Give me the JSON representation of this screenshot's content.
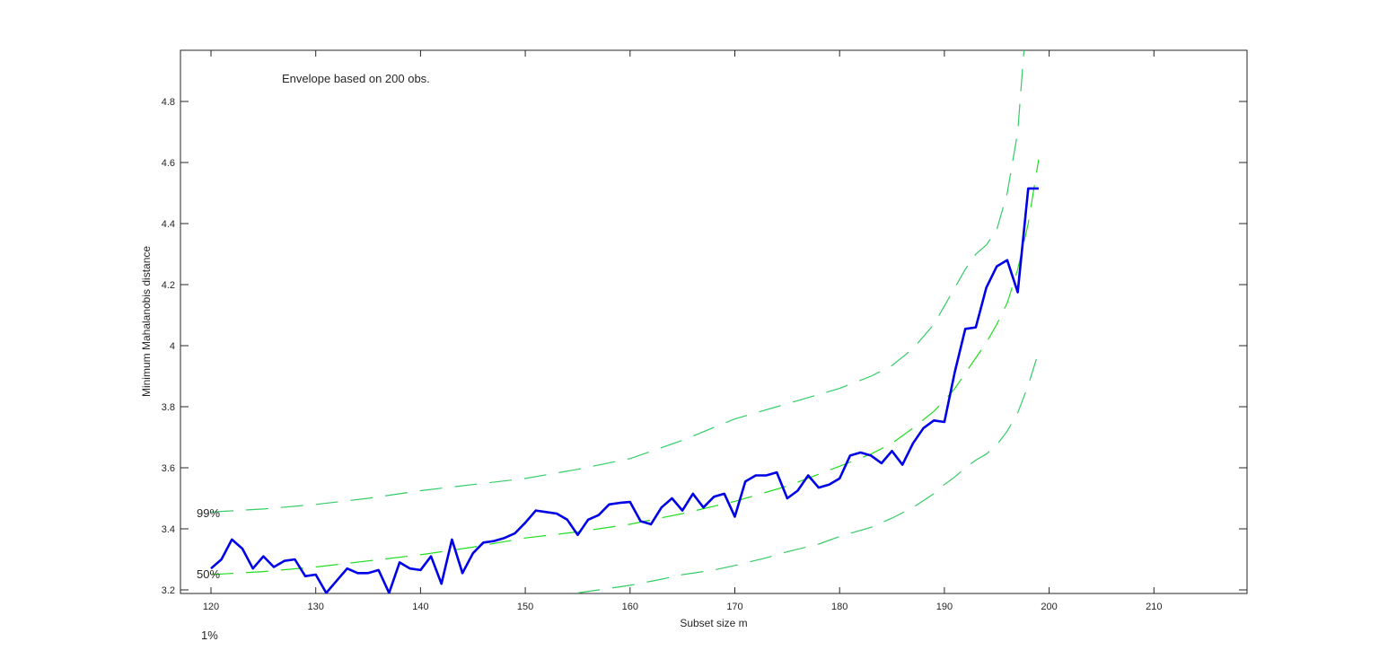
{
  "chart_data": {
    "type": "line",
    "title": "",
    "annotation": "Envelope based on 200 obs.",
    "xlabel": "Subset size m",
    "ylabel": "Minimum Mahalanobis distance",
    "xlim": [
      117,
      219
    ],
    "ylim": [
      3.19,
      4.97
    ],
    "xticks": [
      120,
      130,
      140,
      150,
      160,
      170,
      180,
      190,
      200,
      210
    ],
    "yticks": [
      3.2,
      3.4,
      3.6,
      3.8,
      4,
      4.2,
      4.4,
      4.6,
      4.8
    ],
    "ytick_labels": [
      "3.2",
      "3.4",
      "3.6",
      "3.8",
      "4",
      "4.2",
      "4.4",
      "4.6",
      "4.8"
    ],
    "grid": false,
    "envelope_labels": [
      {
        "text": "99%",
        "x": 120,
        "y": 3.455
      },
      {
        "text": "50%",
        "x": 120,
        "y": 3.25
      },
      {
        "text": "1%",
        "x": 120,
        "y": 3.05
      }
    ],
    "series": [
      {
        "name": "Minimum Mahalanobis distance",
        "color": "#0000e6",
        "style": "solid",
        "x": [
          120,
          121,
          122,
          123,
          124,
          125,
          126,
          127,
          128,
          129,
          130,
          131,
          132,
          133,
          134,
          135,
          136,
          137,
          138,
          139,
          140,
          141,
          142,
          143,
          144,
          145,
          146,
          147,
          148,
          149,
          150,
          151,
          152,
          153,
          154,
          155,
          156,
          157,
          158,
          159,
          160,
          161,
          162,
          163,
          164,
          165,
          166,
          167,
          168,
          169,
          170,
          171,
          172,
          173,
          174,
          175,
          176,
          177,
          178,
          179,
          180,
          181,
          182,
          183,
          184,
          185,
          186,
          187,
          188,
          189,
          190,
          191,
          192,
          193,
          194,
          195,
          196,
          197,
          198,
          199
        ],
        "values": [
          3.27,
          3.3,
          3.365,
          3.335,
          3.27,
          3.31,
          3.275,
          3.295,
          3.3,
          3.245,
          3.25,
          3.19,
          3.23,
          3.27,
          3.255,
          3.255,
          3.265,
          3.19,
          3.29,
          3.27,
          3.265,
          3.31,
          3.22,
          3.365,
          3.255,
          3.32,
          3.355,
          3.36,
          3.37,
          3.385,
          3.42,
          3.46,
          3.455,
          3.45,
          3.43,
          3.38,
          3.43,
          3.445,
          3.48,
          3.485,
          3.488,
          3.425,
          3.415,
          3.47,
          3.5,
          3.46,
          3.515,
          3.47,
          3.505,
          3.515,
          3.44,
          3.555,
          3.575,
          3.575,
          3.585,
          3.5,
          3.525,
          3.575,
          3.535,
          3.545,
          3.565,
          3.64,
          3.65,
          3.64,
          3.615,
          3.655,
          3.61,
          3.68,
          3.73,
          3.755,
          3.75,
          3.915,
          4.055,
          4.06,
          4.19,
          4.26,
          4.28,
          4.175,
          4.515,
          4.515
        ]
      },
      {
        "name": "99% envelope",
        "color": "#33cc66",
        "style": "dashed",
        "x": [
          120,
          125,
          130,
          135,
          140,
          145,
          150,
          155,
          160,
          165,
          170,
          175,
          180,
          183,
          185,
          187,
          189,
          190,
          191,
          192,
          193,
          194,
          195,
          196,
          197,
          197.6
        ],
        "values": [
          3.455,
          3.465,
          3.48,
          3.5,
          3.525,
          3.545,
          3.565,
          3.595,
          3.63,
          3.69,
          3.76,
          3.81,
          3.86,
          3.9,
          3.935,
          3.99,
          4.07,
          4.13,
          4.19,
          4.25,
          4.3,
          4.33,
          4.38,
          4.5,
          4.7,
          4.97
        ]
      },
      {
        "name": "50% envelope",
        "color": "#22dd22",
        "style": "dashed",
        "x": [
          120,
          125,
          130,
          135,
          140,
          145,
          150,
          155,
          160,
          165,
          170,
          175,
          180,
          183,
          185,
          187,
          189,
          190,
          191,
          192,
          193,
          194,
          195,
          196,
          197,
          198,
          199
        ],
        "values": [
          3.25,
          3.26,
          3.275,
          3.295,
          3.315,
          3.34,
          3.37,
          3.39,
          3.415,
          3.45,
          3.49,
          3.54,
          3.605,
          3.645,
          3.68,
          3.73,
          3.785,
          3.82,
          3.86,
          3.91,
          3.96,
          4.01,
          4.07,
          4.14,
          4.25,
          4.4,
          4.61
        ]
      },
      {
        "name": "1% envelope",
        "color": "#33cc66",
        "style": "dashed",
        "x": [
          155,
          157,
          160,
          163,
          165,
          168,
          170,
          173,
          175,
          178,
          180,
          183,
          185,
          187,
          189,
          190,
          191,
          192,
          193,
          194,
          195,
          196,
          197,
          198,
          199
        ],
        "values": [
          3.19,
          3.2,
          3.215,
          3.235,
          3.25,
          3.265,
          3.28,
          3.305,
          3.325,
          3.35,
          3.375,
          3.405,
          3.435,
          3.47,
          3.515,
          3.545,
          3.57,
          3.6,
          3.625,
          3.645,
          3.675,
          3.72,
          3.78,
          3.87,
          3.98
        ]
      }
    ]
  }
}
